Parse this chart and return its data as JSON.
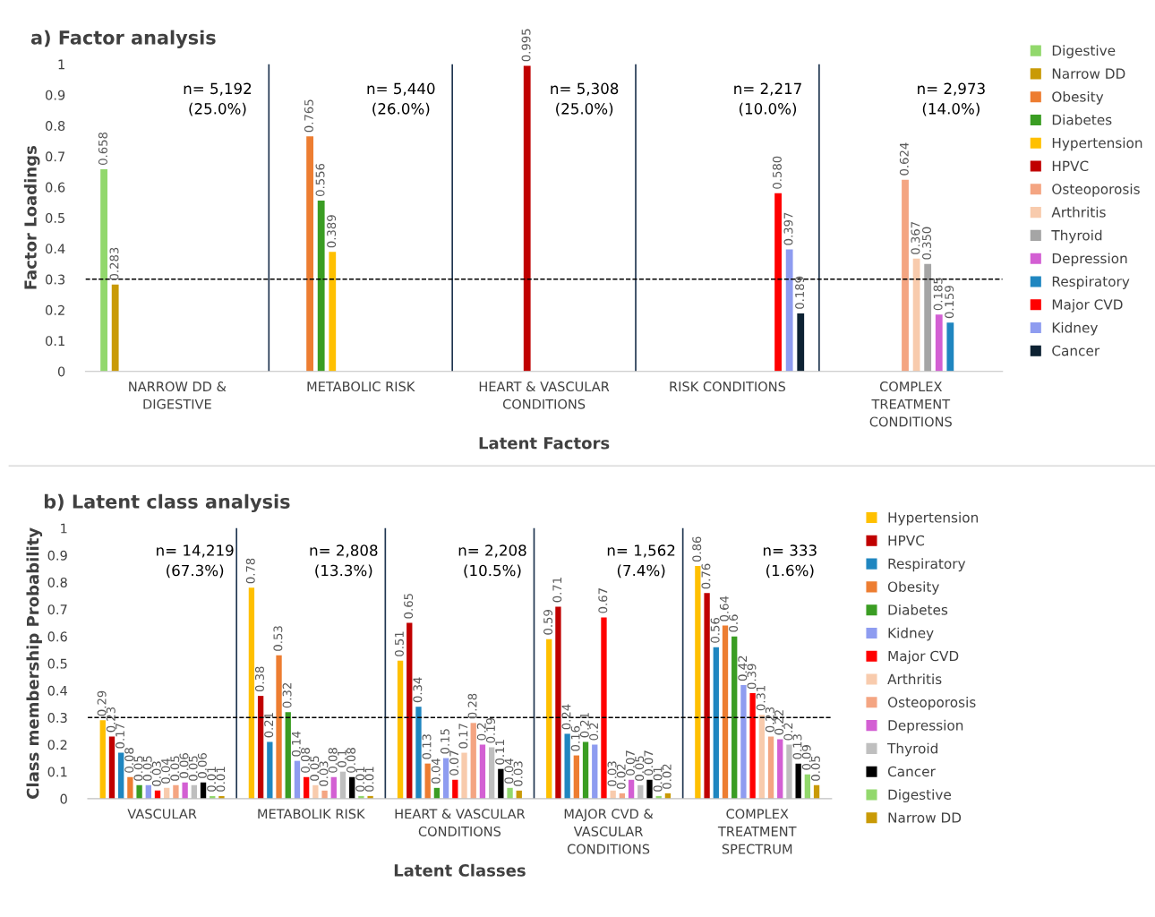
{
  "chart_data": [
    {
      "type": "bar",
      "title": "a) Factor analysis",
      "xlabel": "Latent Factors",
      "ylabel": "Factor Loadings",
      "categories": [
        "NARROW DD &\nDIGESTIVE",
        "METABOLIC RISK",
        "HEART & VASCULAR\nCONDITIONS",
        "RISK CONDITIONS",
        "COMPLEX\nTREATMENT\nCONDITIONS"
      ],
      "series": [
        {
          "name": "Digestive",
          "color": "#92d86c",
          "values": [
            0.658,
            null,
            null,
            null,
            null
          ],
          "value_labels": [
            "0.658",
            null,
            null,
            null,
            null
          ]
        },
        {
          "name": "Narrow DD",
          "color": "#c99a06",
          "values": [
            0.283,
            null,
            null,
            null,
            null
          ],
          "value_labels": [
            "0.283",
            null,
            null,
            null,
            null
          ]
        },
        {
          "name": "Obesity",
          "color": "#ed7d31",
          "values": [
            null,
            0.765,
            null,
            null,
            null
          ],
          "value_labels": [
            null,
            "0.765",
            null,
            null,
            null
          ]
        },
        {
          "name": "Diabetes",
          "color": "#3a9d23",
          "values": [
            null,
            0.556,
            null,
            null,
            null
          ],
          "value_labels": [
            null,
            "0.556",
            null,
            null,
            null
          ]
        },
        {
          "name": "Hypertension",
          "color": "#ffc000",
          "values": [
            null,
            0.389,
            null,
            null,
            null
          ],
          "value_labels": [
            null,
            "0.389",
            null,
            null,
            null
          ]
        },
        {
          "name": "HPVC",
          "color": "#c00000",
          "values": [
            null,
            null,
            0.995,
            null,
            null
          ],
          "value_labels": [
            null,
            null,
            "0.995",
            null,
            null
          ]
        },
        {
          "name": "Osteoporosis",
          "color": "#f4a582",
          "values": [
            null,
            null,
            null,
            null,
            0.624
          ],
          "value_labels": [
            null,
            null,
            null,
            null,
            "0.624"
          ]
        },
        {
          "name": "Arthritis",
          "color": "#f8cbad",
          "values": [
            null,
            null,
            null,
            null,
            0.367
          ],
          "value_labels": [
            null,
            null,
            null,
            null,
            "0.367"
          ]
        },
        {
          "name": "Thyroid",
          "color": "#a5a5a5",
          "values": [
            null,
            null,
            null,
            null,
            0.35
          ],
          "value_labels": [
            null,
            null,
            null,
            null,
            "0.350"
          ]
        },
        {
          "name": "Depression",
          "color": "#d35fd3",
          "values": [
            null,
            null,
            null,
            null,
            0.185
          ],
          "value_labels": [
            null,
            null,
            null,
            null,
            "0.185"
          ]
        },
        {
          "name": "Respiratory",
          "color": "#1f86c0",
          "values": [
            null,
            null,
            null,
            null,
            0.159
          ],
          "value_labels": [
            null,
            null,
            null,
            null,
            "0.159"
          ]
        },
        {
          "name": "Major CVD",
          "color": "#ff0000",
          "values": [
            null,
            null,
            null,
            0.58,
            null
          ],
          "value_labels": [
            null,
            null,
            null,
            "0.580",
            null
          ]
        },
        {
          "name": "Kidney",
          "color": "#8e9cf0",
          "values": [
            null,
            null,
            null,
            0.397,
            null
          ],
          "value_labels": [
            null,
            null,
            null,
            "0.397",
            null
          ]
        },
        {
          "name": "Cancer",
          "color": "#0d2233",
          "values": [
            null,
            null,
            null,
            0.189,
            null
          ],
          "value_labels": [
            null,
            null,
            null,
            "0.189",
            null
          ]
        }
      ],
      "ylim": [
        0,
        1
      ],
      "yticks": [
        0,
        0.1,
        0.2,
        0.3,
        0.4,
        0.5,
        0.6,
        0.7,
        0.8,
        0.9,
        1
      ],
      "ref_lines": [
        {
          "axis": "y",
          "value": 0.3,
          "line_style": "dashed",
          "color": "#000000"
        }
      ],
      "annotations": [
        "n= 5,192\n(25.0%)",
        "n= 5,440\n(26.0%)",
        "n= 5,308\n(25.0%)",
        "n= 2,217\n(10.0%)",
        "n= 2,973\n(14.0%)"
      ],
      "legend": "right",
      "grid": false
    },
    {
      "type": "bar",
      "title": "b) Latent class analysis",
      "xlabel": "Latent Classes",
      "ylabel": "Class membership Probability",
      "categories": [
        "VASCULAR",
        "METABOLIK RISK",
        "HEART & VASCULAR\nCONDITIONS",
        "MAJOR CVD &\nVASCULAR\nCONDITIONS",
        "COMPLEX\nTREATMENT\nSPECTRUM"
      ],
      "series": [
        {
          "name": "Hypertension",
          "color": "#ffc000",
          "values": [
            0.29,
            0.78,
            0.51,
            0.59,
            0.86
          ]
        },
        {
          "name": "HPVC",
          "color": "#c00000",
          "values": [
            0.23,
            0.38,
            0.65,
            0.71,
            0.76
          ]
        },
        {
          "name": "Respiratory",
          "color": "#1f86c0",
          "values": [
            0.17,
            0.21,
            0.34,
            0.24,
            0.56
          ]
        },
        {
          "name": "Obesity",
          "color": "#ed7d31",
          "values": [
            0.08,
            0.53,
            0.13,
            0.16,
            0.64
          ]
        },
        {
          "name": "Diabetes",
          "color": "#3a9d23",
          "values": [
            0.05,
            0.32,
            0.04,
            0.21,
            0.6
          ]
        },
        {
          "name": "Kidney",
          "color": "#8e9cf0",
          "values": [
            0.05,
            0.14,
            0.15,
            0.2,
            0.42
          ]
        },
        {
          "name": "Major CVD",
          "color": "#ff0000",
          "values": [
            0.03,
            0.08,
            0.07,
            0.67,
            0.39
          ]
        },
        {
          "name": "Arthritis",
          "color": "#f8cbad",
          "values": [
            0.04,
            0.05,
            0.17,
            0.03,
            0.31
          ]
        },
        {
          "name": "Osteoporosis",
          "color": "#f4a582",
          "values": [
            0.05,
            0.03,
            0.28,
            0.02,
            0.23
          ]
        },
        {
          "name": "Depression",
          "color": "#d35fd3",
          "values": [
            0.06,
            0.08,
            0.2,
            0.07,
            0.22
          ]
        },
        {
          "name": "Thyroid",
          "color": "#bfbfbf",
          "values": [
            0.05,
            0.1,
            0.19,
            0.05,
            0.2
          ]
        },
        {
          "name": "Cancer",
          "color": "#000000",
          "values": [
            0.06,
            0.08,
            0.11,
            0.07,
            0.13
          ]
        },
        {
          "name": "Digestive",
          "color": "#92d86c",
          "values": [
            0.01,
            0.01,
            0.04,
            0.01,
            0.09
          ]
        },
        {
          "name": "Narrow DD",
          "color": "#c99a06",
          "values": [
            0.01,
            0.01,
            0.03,
            0.02,
            0.05
          ]
        }
      ],
      "data_labels": true,
      "ylim": [
        0,
        1
      ],
      "yticks": [
        0,
        0.1,
        0.2,
        0.3,
        0.4,
        0.5,
        0.6,
        0.7,
        0.8,
        0.9,
        1
      ],
      "ref_lines": [
        {
          "axis": "y",
          "value": 0.3,
          "line_style": "dashed",
          "color": "#000000"
        }
      ],
      "annotations": [
        "n= 14,219\n(67.3%)",
        "n= 2,808\n(13.3%)",
        "n= 2,208\n(10.5%)",
        "n= 1,562\n(7.4%)",
        "n= 333\n(1.6%)"
      ],
      "legend": "right",
      "grid": false
    }
  ]
}
